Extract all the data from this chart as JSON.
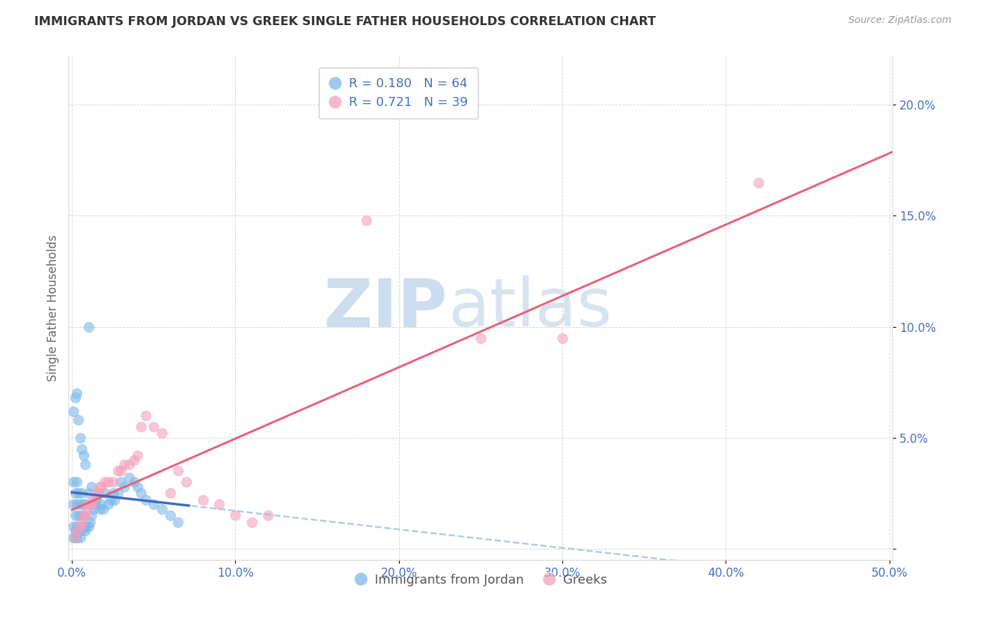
{
  "title": "IMMIGRANTS FROM JORDAN VS GREEK SINGLE FATHER HOUSEHOLDS CORRELATION CHART",
  "source": "Source: ZipAtlas.com",
  "ylabel": "Single Father Households",
  "legend_label1": "Immigrants from Jordan",
  "legend_label2": "Greeks",
  "R1": 0.18,
  "N1": 64,
  "R2": 0.721,
  "N2": 39,
  "xlim": [
    -0.002,
    0.502
  ],
  "ylim": [
    -0.005,
    0.222
  ],
  "xticks": [
    0.0,
    0.1,
    0.2,
    0.3,
    0.4,
    0.5
  ],
  "yticks": [
    0.0,
    0.05,
    0.1,
    0.15,
    0.2
  ],
  "xtick_labels": [
    "0.0%",
    "10.0%",
    "20.0%",
    "30.0%",
    "40.0%",
    "50.0%"
  ],
  "ytick_labels": [
    "",
    "5.0%",
    "10.0%",
    "15.0%",
    "20.0%"
  ],
  "color_blue_scatter": "#7db8e8",
  "color_pink_scatter": "#f4a0bb",
  "color_blue_line": "#3a6bbf",
  "color_pink_line": "#e8607a",
  "color_blue_dashed": "#8ab8d8",
  "color_tick_labels": "#4472c4",
  "watermark_zip_color": "#c5d8ee",
  "watermark_atlas_color": "#b8cce4",
  "background_color": "#ffffff",
  "grid_color": "#d8d8d8",
  "blue_scatter_x": [
    0.001,
    0.001,
    0.001,
    0.001,
    0.002,
    0.002,
    0.002,
    0.002,
    0.003,
    0.003,
    0.003,
    0.003,
    0.004,
    0.004,
    0.004,
    0.005,
    0.005,
    0.005,
    0.006,
    0.006,
    0.006,
    0.007,
    0.007,
    0.008,
    0.008,
    0.009,
    0.01,
    0.01,
    0.011,
    0.012,
    0.012,
    0.013,
    0.014,
    0.015,
    0.016,
    0.017,
    0.018,
    0.019,
    0.02,
    0.022,
    0.024,
    0.025,
    0.026,
    0.028,
    0.03,
    0.032,
    0.035,
    0.038,
    0.04,
    0.042,
    0.045,
    0.05,
    0.055,
    0.06,
    0.065,
    0.001,
    0.002,
    0.003,
    0.004,
    0.005,
    0.006,
    0.007,
    0.008,
    0.01
  ],
  "blue_scatter_y": [
    0.005,
    0.01,
    0.02,
    0.03,
    0.005,
    0.008,
    0.015,
    0.025,
    0.005,
    0.01,
    0.02,
    0.03,
    0.008,
    0.015,
    0.025,
    0.005,
    0.01,
    0.02,
    0.008,
    0.015,
    0.025,
    0.01,
    0.02,
    0.008,
    0.02,
    0.01,
    0.01,
    0.025,
    0.012,
    0.015,
    0.028,
    0.018,
    0.02,
    0.022,
    0.025,
    0.018,
    0.02,
    0.018,
    0.025,
    0.02,
    0.022,
    0.025,
    0.022,
    0.025,
    0.03,
    0.028,
    0.032,
    0.03,
    0.028,
    0.025,
    0.022,
    0.02,
    0.018,
    0.015,
    0.012,
    0.062,
    0.068,
    0.07,
    0.058,
    0.05,
    0.045,
    0.042,
    0.038,
    0.1
  ],
  "pink_scatter_x": [
    0.002,
    0.003,
    0.005,
    0.006,
    0.007,
    0.008,
    0.009,
    0.01,
    0.012,
    0.013,
    0.015,
    0.016,
    0.017,
    0.018,
    0.02,
    0.022,
    0.025,
    0.028,
    0.03,
    0.032,
    0.035,
    0.038,
    0.04,
    0.042,
    0.045,
    0.05,
    0.055,
    0.06,
    0.065,
    0.07,
    0.08,
    0.09,
    0.1,
    0.11,
    0.12,
    0.18,
    0.25,
    0.3,
    0.42
  ],
  "pink_scatter_y": [
    0.005,
    0.008,
    0.01,
    0.012,
    0.015,
    0.015,
    0.018,
    0.02,
    0.02,
    0.022,
    0.025,
    0.025,
    0.028,
    0.028,
    0.03,
    0.03,
    0.03,
    0.035,
    0.035,
    0.038,
    0.038,
    0.04,
    0.042,
    0.055,
    0.06,
    0.055,
    0.052,
    0.025,
    0.035,
    0.03,
    0.022,
    0.02,
    0.015,
    0.012,
    0.015,
    0.148,
    0.095,
    0.095,
    0.165
  ]
}
